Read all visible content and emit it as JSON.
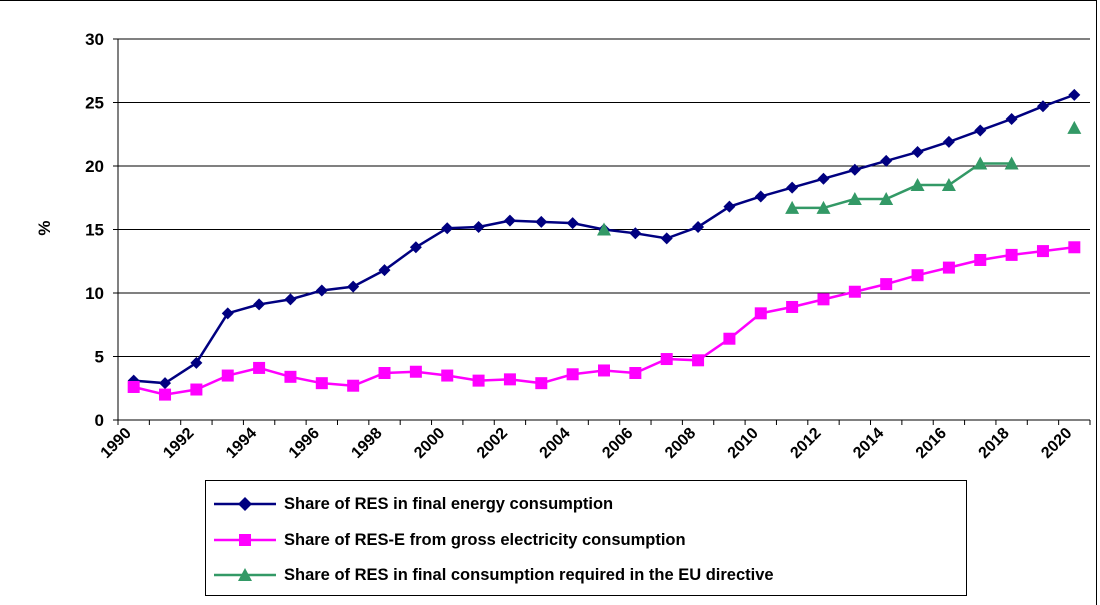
{
  "chart_data": {
    "type": "line",
    "title": "",
    "xlabel": "",
    "ylabel": "%",
    "xlim": [
      1990,
      2021
    ],
    "ylim": [
      0,
      30
    ],
    "yticks": [
      0,
      5,
      10,
      15,
      20,
      25,
      30
    ],
    "xticks": [
      "1990",
      "1992",
      "1994",
      "1996",
      "1998",
      "2000",
      "2002",
      "2004",
      "2006",
      "2008",
      "2010",
      "2012",
      "2014",
      "2016",
      "2018",
      "2020"
    ],
    "grid": true,
    "legend_position": "bottom",
    "series": [
      {
        "name": "Share of RES in final energy consumption",
        "color": "#000080",
        "marker": "diamond",
        "line": true,
        "x": [
          1990,
          1991,
          1992,
          1993,
          1994,
          1995,
          1996,
          1997,
          1998,
          1999,
          2000,
          2001,
          2002,
          2003,
          2004,
          2005,
          2006,
          2007,
          2008,
          2009,
          2010,
          2011,
          2012,
          2013,
          2014,
          2015,
          2016,
          2017,
          2018,
          2019,
          2020
        ],
        "values": [
          3.1,
          2.9,
          4.5,
          8.4,
          9.1,
          9.5,
          10.2,
          10.5,
          11.8,
          13.6,
          15.1,
          15.2,
          15.7,
          15.6,
          15.5,
          15.0,
          14.7,
          14.3,
          15.2,
          16.8,
          17.6,
          18.3,
          19.0,
          19.7,
          20.4,
          21.1,
          21.9,
          22.8,
          23.7,
          24.7,
          25.6
        ]
      },
      {
        "name": "Share of RES-E from gross electricity consumption",
        "color": "#FF00FF",
        "marker": "square",
        "line": true,
        "x": [
          1990,
          1991,
          1992,
          1993,
          1994,
          1995,
          1996,
          1997,
          1998,
          1999,
          2000,
          2001,
          2002,
          2003,
          2004,
          2005,
          2006,
          2007,
          2008,
          2009,
          2010,
          2011,
          2012,
          2013,
          2014,
          2015,
          2016,
          2017,
          2018,
          2019,
          2020
        ],
        "values": [
          2.6,
          2.0,
          2.4,
          3.5,
          4.1,
          3.4,
          2.9,
          2.7,
          3.7,
          3.8,
          3.5,
          3.1,
          3.2,
          2.9,
          3.6,
          3.9,
          3.7,
          4.8,
          4.7,
          6.4,
          8.4,
          8.9,
          9.5,
          10.1,
          10.7,
          11.4,
          12.0,
          12.6,
          13.0,
          13.3,
          13.6
        ]
      },
      {
        "name": "Share of RES in final consumption required in the EU directive",
        "color": "#339966",
        "marker": "triangle",
        "line": true,
        "segments": [
          {
            "x": [
              2005
            ],
            "values": [
              15.0
            ]
          },
          {
            "x": [
              2011,
              2012,
              2013,
              2014,
              2015,
              2016,
              2017,
              2018
            ],
            "values": [
              16.7,
              16.7,
              17.4,
              17.4,
              18.5,
              18.5,
              20.2,
              20.2
            ]
          },
          {
            "x": [
              2020
            ],
            "values": [
              23.0
            ]
          }
        ]
      }
    ]
  }
}
